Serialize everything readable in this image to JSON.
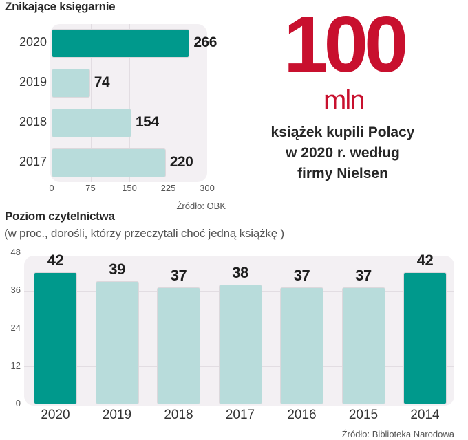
{
  "colors": {
    "highlight": "#00998c",
    "normal": "#b8dcdb",
    "panel": "#f3f0f3",
    "accent_red": "#c8102e"
  },
  "highlight_box": {
    "number": "100",
    "unit": "mln",
    "caption_lines": [
      "książek kupili Polacy",
      "w 2020 r. według",
      "firmy Nielsen"
    ]
  },
  "chart_data": [
    {
      "type": "bar",
      "orientation": "horizontal",
      "title": "Znikające księgarnie",
      "categories": [
        "2020",
        "2019",
        "2018",
        "2017"
      ],
      "values": [
        266,
        74,
        154,
        220
      ],
      "highlighted": [
        true,
        false,
        false,
        false
      ],
      "xlim": [
        0,
        300
      ],
      "xticks": [
        "0",
        "75",
        "150",
        "225",
        "300"
      ],
      "xtick_values": [
        0,
        75,
        150,
        225,
        300
      ],
      "grid": true,
      "source": "Źródło: OBK"
    },
    {
      "type": "bar",
      "orientation": "vertical",
      "title": "Poziom czytelnictwa",
      "subtitle": "(w proc., dorośli, którzy przeczytali choć jedną książkę )",
      "categories": [
        "2020",
        "2019",
        "2018",
        "2017",
        "2016",
        "2015",
        "2014"
      ],
      "values": [
        42,
        39,
        37,
        38,
        37,
        37,
        42
      ],
      "highlighted": [
        true,
        false,
        false,
        false,
        false,
        false,
        true
      ],
      "ylim": [
        0,
        48
      ],
      "yticks": [
        "48",
        "36",
        "24",
        "12",
        "0"
      ],
      "ytick_values": [
        48,
        36,
        24,
        12,
        0
      ],
      "grid": true,
      "source": "Źródło: Biblioteka Narodowa"
    }
  ]
}
